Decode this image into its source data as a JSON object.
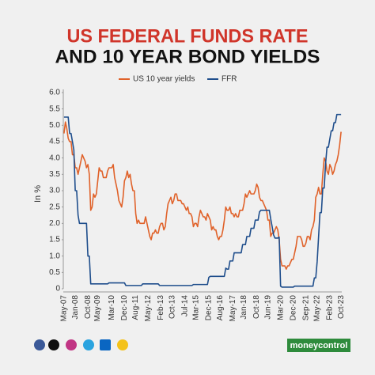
{
  "chart_data": {
    "type": "line",
    "title_lines": [
      "US FEDERAL FUNDS RATE",
      "AND 10 YEAR BOND YIELDS"
    ],
    "y_label": "In %",
    "brand": "moneycontrol",
    "categories": [
      "May-07",
      null,
      null,
      null,
      null,
      null,
      null,
      null,
      "Jan-08",
      null,
      null,
      null,
      null,
      null,
      null,
      null,
      null,
      "Oct-08",
      null,
      null,
      null,
      null,
      null,
      null,
      "May-09",
      null,
      null,
      null,
      null,
      null,
      null,
      null,
      null,
      null,
      "Mar-10",
      null,
      null,
      null,
      null,
      null,
      null,
      null,
      null,
      "Dec-10",
      null,
      null,
      null,
      null,
      null,
      null,
      null,
      "Aug-11",
      null,
      null,
      null,
      null,
      null,
      null,
      null,
      null,
      "May-12",
      null,
      null,
      null,
      null,
      null,
      null,
      null,
      null,
      "Feb-13",
      null,
      null,
      null,
      null,
      null,
      null,
      null,
      "Oct-13",
      null,
      null,
      null,
      null,
      null,
      null,
      null,
      null,
      "Jul-14",
      null,
      null,
      null,
      null,
      null,
      null,
      null,
      "Mar-15",
      null,
      null,
      null,
      null,
      null,
      null,
      null,
      null,
      "Dec-15",
      null,
      null,
      null,
      null,
      null,
      null,
      null,
      "Aug-16",
      null,
      null,
      null,
      null,
      null,
      null,
      null,
      null,
      "May-17",
      null,
      null,
      null,
      null,
      null,
      null,
      null,
      "Jan-18",
      null,
      null,
      null,
      null,
      null,
      null,
      null,
      null,
      "Oct-18",
      null,
      null,
      null,
      null,
      null,
      null,
      null,
      "Jun-19",
      null,
      null,
      null,
      null,
      null,
      null,
      null,
      null,
      "Mar-20",
      null,
      null,
      null,
      null,
      null,
      null,
      null,
      null,
      "Dec-20",
      null,
      null,
      null,
      null,
      null,
      null,
      null,
      null,
      "Sep-21",
      null,
      null,
      null,
      null,
      null,
      null,
      null,
      "May-22",
      null,
      null,
      null,
      null,
      null,
      null,
      null,
      null,
      "Feb-23",
      null,
      null,
      null,
      null,
      null,
      null,
      null,
      "Oct-23"
    ],
    "series": [
      {
        "name": "US 10 year yields",
        "color": "#e0622a",
        "values": [
          4.75,
          5.1,
          4.9,
          4.6,
          4.5,
          4.5,
          4.1,
          4.1,
          3.7,
          3.7,
          3.5,
          3.7,
          3.9,
          4.1,
          4.0,
          3.9,
          3.7,
          3.8,
          3.5,
          2.4,
          2.5,
          2.9,
          2.8,
          2.9,
          3.3,
          3.7,
          3.6,
          3.6,
          3.4,
          3.4,
          3.4,
          3.6,
          3.7,
          3.7,
          3.7,
          3.8,
          3.4,
          3.2,
          3.0,
          2.7,
          2.6,
          2.5,
          2.8,
          3.3,
          3.4,
          3.6,
          3.4,
          3.5,
          3.2,
          3.0,
          3.0,
          2.3,
          2.0,
          2.1,
          2.0,
          2.0,
          2.0,
          2.0,
          2.2,
          2.0,
          1.8,
          1.6,
          1.5,
          1.7,
          1.7,
          1.8,
          1.7,
          1.7,
          1.9,
          2.0,
          2.0,
          1.8,
          1.9,
          2.3,
          2.6,
          2.7,
          2.8,
          2.6,
          2.7,
          2.9,
          2.9,
          2.7,
          2.7,
          2.7,
          2.6,
          2.6,
          2.5,
          2.4,
          2.5,
          2.3,
          2.3,
          2.2,
          1.9,
          2.0,
          2.0,
          1.9,
          2.2,
          2.4,
          2.3,
          2.2,
          2.2,
          2.1,
          2.3,
          2.2,
          2.1,
          1.8,
          1.9,
          1.8,
          1.8,
          1.6,
          1.5,
          1.6,
          1.6,
          1.8,
          2.1,
          2.5,
          2.4,
          2.4,
          2.5,
          2.3,
          2.3,
          2.2,
          2.3,
          2.2,
          2.2,
          2.4,
          2.4,
          2.4,
          2.6,
          2.9,
          2.8,
          2.9,
          3.0,
          2.9,
          2.9,
          2.9,
          3.0,
          3.2,
          3.1,
          2.8,
          2.7,
          2.7,
          2.6,
          2.5,
          2.4,
          2.1,
          2.1,
          1.6,
          1.7,
          1.7,
          1.8,
          1.9,
          1.8,
          1.5,
          0.9,
          0.7,
          0.7,
          0.7,
          0.6,
          0.7,
          0.7,
          0.8,
          0.9,
          0.9,
          1.1,
          1.3,
          1.6,
          1.6,
          1.6,
          1.5,
          1.3,
          1.3,
          1.4,
          1.6,
          1.6,
          1.5,
          1.8,
          1.9,
          2.1,
          2.8,
          2.9,
          3.1,
          2.9,
          2.9,
          3.5,
          4.0,
          3.9,
          3.6,
          3.5,
          3.8,
          3.7,
          3.5,
          3.6,
          3.8,
          3.9,
          4.1,
          4.4,
          4.8
        ]
      },
      {
        "name": "FFR",
        "color": "#1f4e8c",
        "values": [
          5.25,
          5.25,
          5.25,
          5.25,
          4.75,
          4.75,
          4.5,
          4.25,
          3.0,
          3.0,
          2.25,
          2.0,
          2.0,
          2.0,
          2.0,
          2.0,
          2.0,
          1.0,
          1.0,
          0.15,
          0.15,
          0.15,
          0.15,
          0.15,
          0.15,
          0.15,
          0.15,
          0.15,
          0.15,
          0.15,
          0.15,
          0.15,
          0.18,
          0.18,
          0.18,
          0.18,
          0.18,
          0.18,
          0.18,
          0.18,
          0.18,
          0.18,
          0.18,
          0.18,
          0.1,
          0.1,
          0.1,
          0.1,
          0.1,
          0.1,
          0.1,
          0.1,
          0.1,
          0.1,
          0.1,
          0.1,
          0.15,
          0.15,
          0.15,
          0.15,
          0.15,
          0.15,
          0.15,
          0.15,
          0.15,
          0.15,
          0.15,
          0.15,
          0.1,
          0.1,
          0.1,
          0.1,
          0.1,
          0.1,
          0.1,
          0.1,
          0.1,
          0.1,
          0.1,
          0.1,
          0.1,
          0.1,
          0.1,
          0.1,
          0.1,
          0.1,
          0.1,
          0.1,
          0.1,
          0.1,
          0.1,
          0.1,
          0.13,
          0.13,
          0.13,
          0.13,
          0.13,
          0.13,
          0.13,
          0.13,
          0.13,
          0.13,
          0.13,
          0.35,
          0.38,
          0.38,
          0.38,
          0.38,
          0.38,
          0.38,
          0.38,
          0.38,
          0.38,
          0.38,
          0.38,
          0.63,
          0.6,
          0.6,
          0.85,
          0.85,
          0.85,
          1.1,
          1.1,
          1.1,
          1.1,
          1.1,
          1.1,
          1.35,
          1.35,
          1.35,
          1.6,
          1.6,
          1.6,
          1.85,
          1.85,
          1.85,
          2.1,
          2.1,
          2.1,
          2.35,
          2.4,
          2.4,
          2.4,
          2.4,
          2.4,
          2.4,
          2.4,
          2.13,
          1.9,
          1.65,
          1.55,
          1.55,
          1.55,
          1.58,
          0.08,
          0.05,
          0.05,
          0.05,
          0.05,
          0.05,
          0.05,
          0.05,
          0.05,
          0.05,
          0.08,
          0.08,
          0.08,
          0.08,
          0.08,
          0.08,
          0.08,
          0.08,
          0.08,
          0.08,
          0.08,
          0.08,
          0.08,
          0.08,
          0.33,
          0.33,
          0.83,
          1.58,
          2.33,
          2.33,
          3.08,
          3.08,
          3.83,
          4.33,
          4.33,
          4.58,
          4.83,
          4.83,
          5.08,
          5.08,
          5.33,
          5.33,
          5.33,
          5.33
        ]
      }
    ],
    "ylim": [
      0,
      6
    ],
    "yticks": [
      0,
      0.5,
      {
        "value": 1,
        "label": "1.0"
      },
      1.5,
      {
        "value": 2,
        "label": "2.0"
      },
      2.5,
      {
        "value": 3,
        "label": "3.0"
      },
      3.5,
      {
        "value": 4,
        "label": "4.0"
      },
      4.5,
      {
        "value": 5,
        "label": "5.0"
      },
      5.5,
      {
        "value": 6,
        "label": "6.0"
      }
    ],
    "grid": false
  }
}
